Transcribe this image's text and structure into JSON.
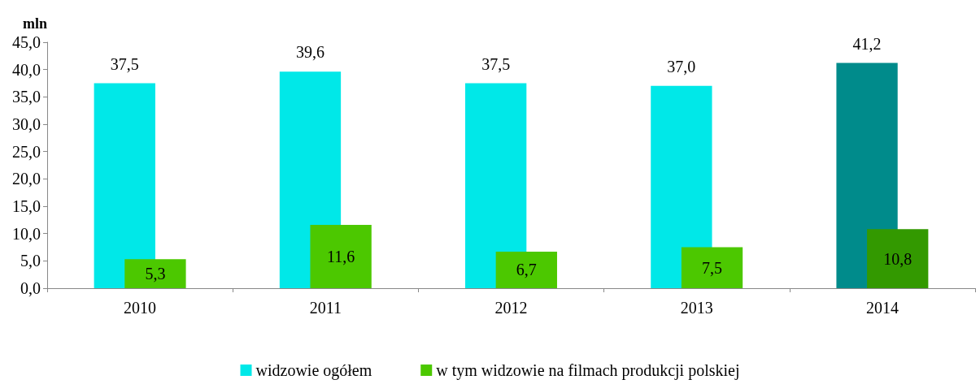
{
  "chart_data": {
    "type": "bar",
    "ylabel": "mln",
    "categories": [
      "2010",
      "2011",
      "2012",
      "2013",
      "2014"
    ],
    "series": [
      {
        "name": "widzowie ogółem",
        "color": "#00e8e8",
        "colors": [
          "#00e8e8",
          "#00e8e8",
          "#00e8e8",
          "#00e8e8",
          "#008b8b"
        ],
        "values": [
          37.5,
          39.6,
          37.5,
          37.0,
          41.2
        ],
        "value_labels": [
          "37,5",
          "39,6",
          "37,5",
          "37,0",
          "41,2"
        ]
      },
      {
        "name": "w tym widzowie na filmach produkcji polskiej",
        "color": "#4cc800",
        "colors": [
          "#4cc800",
          "#4cc800",
          "#4cc800",
          "#4cc800",
          "#339900"
        ],
        "values": [
          5.3,
          11.6,
          6.7,
          7.5,
          10.8
        ],
        "value_labels": [
          "5,3",
          "11,6",
          "6,7",
          "7,5",
          "10,8"
        ]
      }
    ],
    "ylim": [
      0,
      45
    ],
    "yticks": [
      {
        "value": 0,
        "label": "0,0"
      },
      {
        "value": 5,
        "label": "5,0"
      },
      {
        "value": 10,
        "label": "10,0"
      },
      {
        "value": 15,
        "label": "15,0"
      },
      {
        "value": 20,
        "label": "20,0"
      },
      {
        "value": 25,
        "label": "25,0"
      },
      {
        "value": 30,
        "label": "30,0"
      },
      {
        "value": 35,
        "label": "35,0"
      },
      {
        "value": 40,
        "label": "40,0"
      },
      {
        "value": 45,
        "label": "45,0"
      }
    ],
    "grid": false,
    "legend": "bottom"
  }
}
